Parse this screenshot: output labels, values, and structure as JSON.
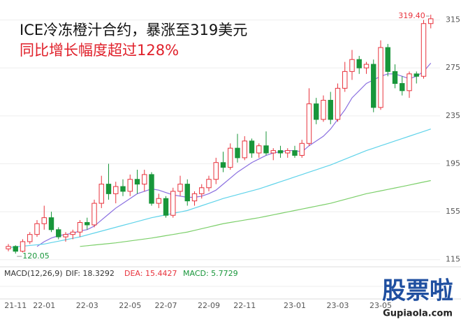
{
  "chart_data": {
    "type": "candlestick",
    "title": "ICE冷冻橙汁合约，暴涨至319美元",
    "subtitle": "同比增长幅度超过128%",
    "ylim": [
      109,
      327
    ],
    "yticks": [
      115,
      155,
      195,
      235,
      275,
      315
    ],
    "up_color": "#e8323c",
    "down_color": "#18963a",
    "categories": [
      null,
      "21-11",
      null,
      null,
      null,
      "22-01",
      null,
      null,
      null,
      null,
      null,
      "22-03",
      null,
      null,
      null,
      null,
      null,
      "22-05",
      null,
      null,
      null,
      null,
      "22-07",
      null,
      null,
      null,
      null,
      null,
      "22-09",
      null,
      null,
      null,
      null,
      "22-11",
      null,
      null,
      null,
      null,
      null,
      null,
      "23-01",
      null,
      null,
      null,
      null,
      null,
      "23-03",
      null,
      null,
      null,
      null,
      null,
      "23-05",
      null,
      null,
      null,
      null,
      null,
      null,
      null
    ],
    "ohlc": [
      [
        124,
        128,
        122,
        126
      ],
      [
        126,
        127,
        120.05,
        122
      ],
      [
        122,
        132,
        121,
        130
      ],
      [
        130,
        138,
        128,
        136
      ],
      [
        136,
        148,
        134,
        145
      ],
      [
        145,
        160,
        140,
        150
      ],
      [
        150,
        155,
        138,
        140
      ],
      [
        140,
        142,
        132,
        134
      ],
      [
        134,
        138,
        130,
        136
      ],
      [
        136,
        140,
        132,
        138
      ],
      [
        138,
        148,
        134,
        146
      ],
      [
        146,
        150,
        140,
        144
      ],
      [
        144,
        165,
        142,
        162
      ],
      [
        162,
        185,
        158,
        178
      ],
      [
        178,
        195,
        165,
        170
      ],
      [
        170,
        180,
        162,
        176
      ],
      [
        176,
        182,
        168,
        172
      ],
      [
        172,
        186,
        168,
        182
      ],
      [
        182,
        190,
        170,
        178
      ],
      [
        178,
        190,
        172,
        186
      ],
      [
        186,
        188,
        160,
        162
      ],
      [
        162,
        170,
        158,
        166
      ],
      [
        166,
        168,
        150,
        152
      ],
      [
        152,
        175,
        150,
        172
      ],
      [
        172,
        185,
        168,
        178
      ],
      [
        178,
        182,
        160,
        164
      ],
      [
        164,
        172,
        160,
        170
      ],
      [
        170,
        178,
        166,
        175
      ],
      [
        175,
        185,
        172,
        182
      ],
      [
        182,
        200,
        178,
        196
      ],
      [
        196,
        205,
        188,
        192
      ],
      [
        192,
        212,
        190,
        208
      ],
      [
        208,
        220,
        196,
        200
      ],
      [
        200,
        218,
        198,
        214
      ],
      [
        214,
        216,
        200,
        204
      ],
      [
        204,
        212,
        200,
        210
      ],
      [
        210,
        222,
        202,
        204
      ],
      [
        204,
        208,
        198,
        206
      ],
      [
        206,
        210,
        200,
        204
      ],
      [
        204,
        208,
        200,
        206
      ],
      [
        206,
        210,
        200,
        202
      ],
      [
        202,
        215,
        200,
        212
      ],
      [
        212,
        258,
        210,
        245
      ],
      [
        245,
        250,
        228,
        232
      ],
      [
        232,
        252,
        230,
        248
      ],
      [
        248,
        255,
        228,
        232
      ],
      [
        232,
        262,
        230,
        258
      ],
      [
        258,
        280,
        255,
        272
      ],
      [
        272,
        290,
        265,
        282
      ],
      [
        282,
        285,
        270,
        275
      ],
      [
        275,
        280,
        270,
        278
      ],
      [
        278,
        282,
        238,
        242
      ],
      [
        242,
        298,
        240,
        292
      ],
      [
        292,
        295,
        268,
        272
      ],
      [
        272,
        278,
        258,
        262
      ],
      [
        262,
        268,
        252,
        256
      ],
      [
        256,
        272,
        250,
        270
      ],
      [
        270,
        272,
        262,
        268
      ],
      [
        268,
        315,
        266,
        312
      ],
      [
        312,
        319.4,
        308,
        316
      ]
    ],
    "series": [
      {
        "color": "#8a6fe0",
        "values": [
          null,
          null,
          null,
          null,
          126,
          130,
          133,
          135,
          136,
          137,
          139,
          140,
          143,
          148,
          153,
          158,
          162,
          166,
          170,
          172,
          174,
          173,
          171,
          169,
          168,
          167,
          167,
          168,
          170,
          173,
          178,
          183,
          188,
          192,
          196,
          199,
          202,
          204,
          205,
          206,
          206,
          205,
          210,
          214,
          218,
          224,
          232,
          240,
          250,
          256,
          262,
          265,
          268,
          270,
          270,
          268,
          266,
          268,
          272,
          279
        ]
      },
      {
        "color": "#5fd3ea",
        "values": [
          125,
          125.6,
          126.2,
          126.8,
          127.4,
          128,
          129.2,
          130.4,
          131.6,
          132.8,
          134,
          135.6,
          137.2,
          138.8,
          140.4,
          142,
          143.6,
          145.2,
          146.8,
          148.4,
          150,
          151.2,
          152.4,
          153.6,
          154.8,
          156,
          158,
          160,
          162,
          164,
          166,
          167.6,
          169.2,
          170.8,
          172.4,
          174,
          176,
          178,
          180,
          182,
          184,
          186,
          188,
          190,
          192,
          194,
          196.4,
          198.8,
          201.2,
          203.6,
          206,
          208,
          210,
          212,
          214,
          216,
          218,
          220,
          222,
          224
        ]
      },
      {
        "color": "#7ccf6a",
        "values": [
          null,
          null,
          null,
          null,
          null,
          null,
          null,
          null,
          null,
          null,
          126,
          126.6,
          127.2,
          127.8,
          128.4,
          129,
          129.8,
          130.6,
          131.4,
          132.2,
          133,
          134,
          135,
          136,
          137,
          138,
          139.4,
          140.8,
          142.2,
          143.6,
          145,
          146,
          147,
          148,
          149,
          150,
          151.2,
          152.4,
          153.6,
          154.8,
          156,
          157.2,
          158.4,
          159.6,
          160.8,
          162,
          163.6,
          165.2,
          166.8,
          168.4,
          170,
          171.2,
          172.4,
          173.6,
          174.8,
          176,
          177.25,
          178.5,
          179.75,
          181
        ]
      }
    ],
    "high_label": "319.40",
    "low_label": "120.05",
    "macd_legend": {
      "title": "MACD(12,26,9)",
      "dif": "DIF: 18.3292",
      "dea": "DEA: 15.4427",
      "macd": "MACD: 5.7729"
    },
    "watermark": {
      "brand": "股票啦",
      "site": "Gupiaola.com"
    }
  }
}
